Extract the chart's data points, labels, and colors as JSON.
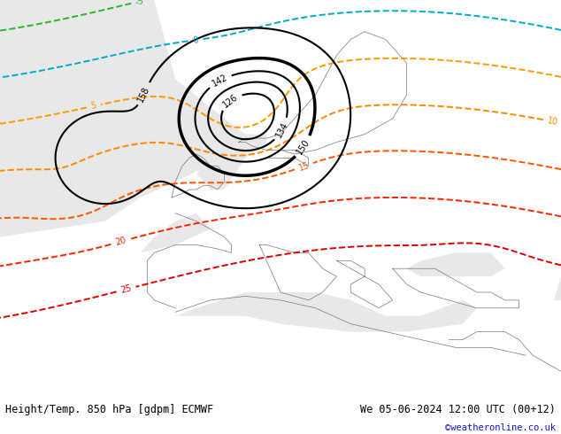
{
  "title_left": "Height/Temp. 850 hPa [gdpm] ECMWF",
  "title_right": "We 05-06-2024 12:00 UTC (00+12)",
  "watermark": "©weatheronline.co.uk",
  "land_color": "#c8dfa0",
  "sea_color": "#e8e8e8",
  "footer_bg": "#cccccc",
  "fig_width": 6.34,
  "fig_height": 4.9,
  "dpi": 100
}
